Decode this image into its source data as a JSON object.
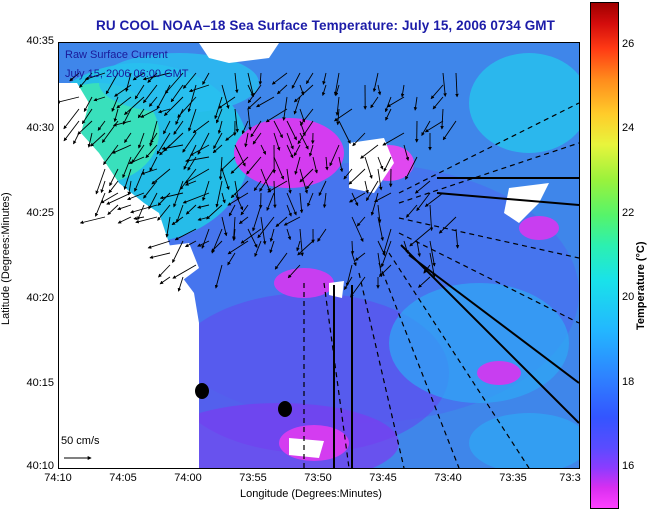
{
  "title": "RU COOL  NOAA–18  Sea Surface Temperature:  July 15, 2006 0734 GMT",
  "overlay": {
    "line1": "Raw Surface Current",
    "line2": "July 15, 2006 06:00 GMT"
  },
  "axes": {
    "xlabel": "Longitude (Degrees:Minutes)",
    "ylabel": "Latitude (Degrees:Minutes)",
    "xticks": [
      "74:10",
      "74:05",
      "74:00",
      "73:55",
      "73:50",
      "73:45",
      "73:40",
      "73:35",
      "73:3"
    ],
    "yticks": [
      "40:35",
      "40:30",
      "40:25",
      "40:20",
      "40:15",
      "40:10"
    ]
  },
  "scale": {
    "label": "50 cm/s"
  },
  "colorbar": {
    "label": "Temperature (°C)",
    "ticks": [
      "26",
      "24",
      "22",
      "20",
      "18",
      "16"
    ],
    "range": [
      15,
      27
    ]
  },
  "colors": {
    "warm_water": "#3a7fe8",
    "cold_upwelling": "#c03cf0",
    "land": "#ffffff",
    "vectors": "#000000",
    "title": "#1c1ca8"
  }
}
